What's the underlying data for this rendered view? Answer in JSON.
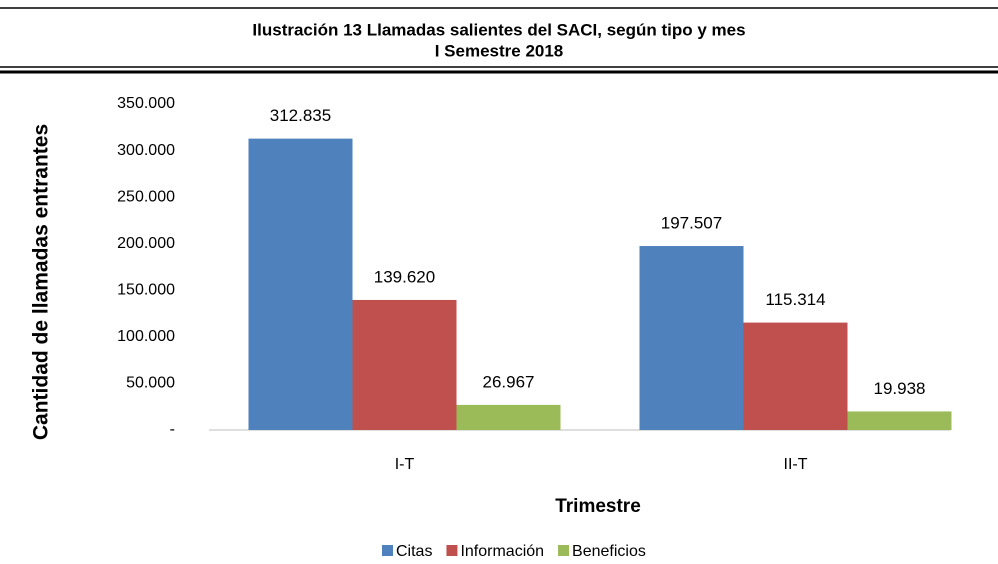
{
  "chart_data": {
    "type": "bar",
    "title": "Ilustración 13 Llamadas salientes del SACI, según tipo y mes",
    "subtitle": "I Semestre 2018",
    "y_label": "Cantidad de llamadas entrantes",
    "x_label": "Trimestre",
    "categories": [
      "I-T",
      "II-T"
    ],
    "series": [
      {
        "name": "Citas",
        "color": "#4f81bd",
        "values": [
          312835,
          197507
        ],
        "value_labels": [
          "312.835",
          "197.507"
        ]
      },
      {
        "name": "Información",
        "color": "#c0504d",
        "values": [
          139620,
          115314
        ],
        "value_labels": [
          "139.620",
          "115.314"
        ]
      },
      {
        "name": "Beneficios",
        "color": "#9bbb59",
        "values": [
          26967,
          19938
        ],
        "value_labels": [
          "26.967",
          "19.938"
        ]
      }
    ],
    "ylim": [
      0,
      350000
    ],
    "yticks": [
      {
        "value": 0,
        "label": "-"
      },
      {
        "value": 50000,
        "label": "50.000"
      },
      {
        "value": 100000,
        "label": "100.000"
      },
      {
        "value": 150000,
        "label": "150.000"
      },
      {
        "value": 200000,
        "label": "200.000"
      },
      {
        "value": 250000,
        "label": "250.000"
      },
      {
        "value": 300000,
        "label": "300.000"
      },
      {
        "value": 350000,
        "label": "350.000"
      }
    ],
    "grid": false,
    "legend": "bottom"
  }
}
